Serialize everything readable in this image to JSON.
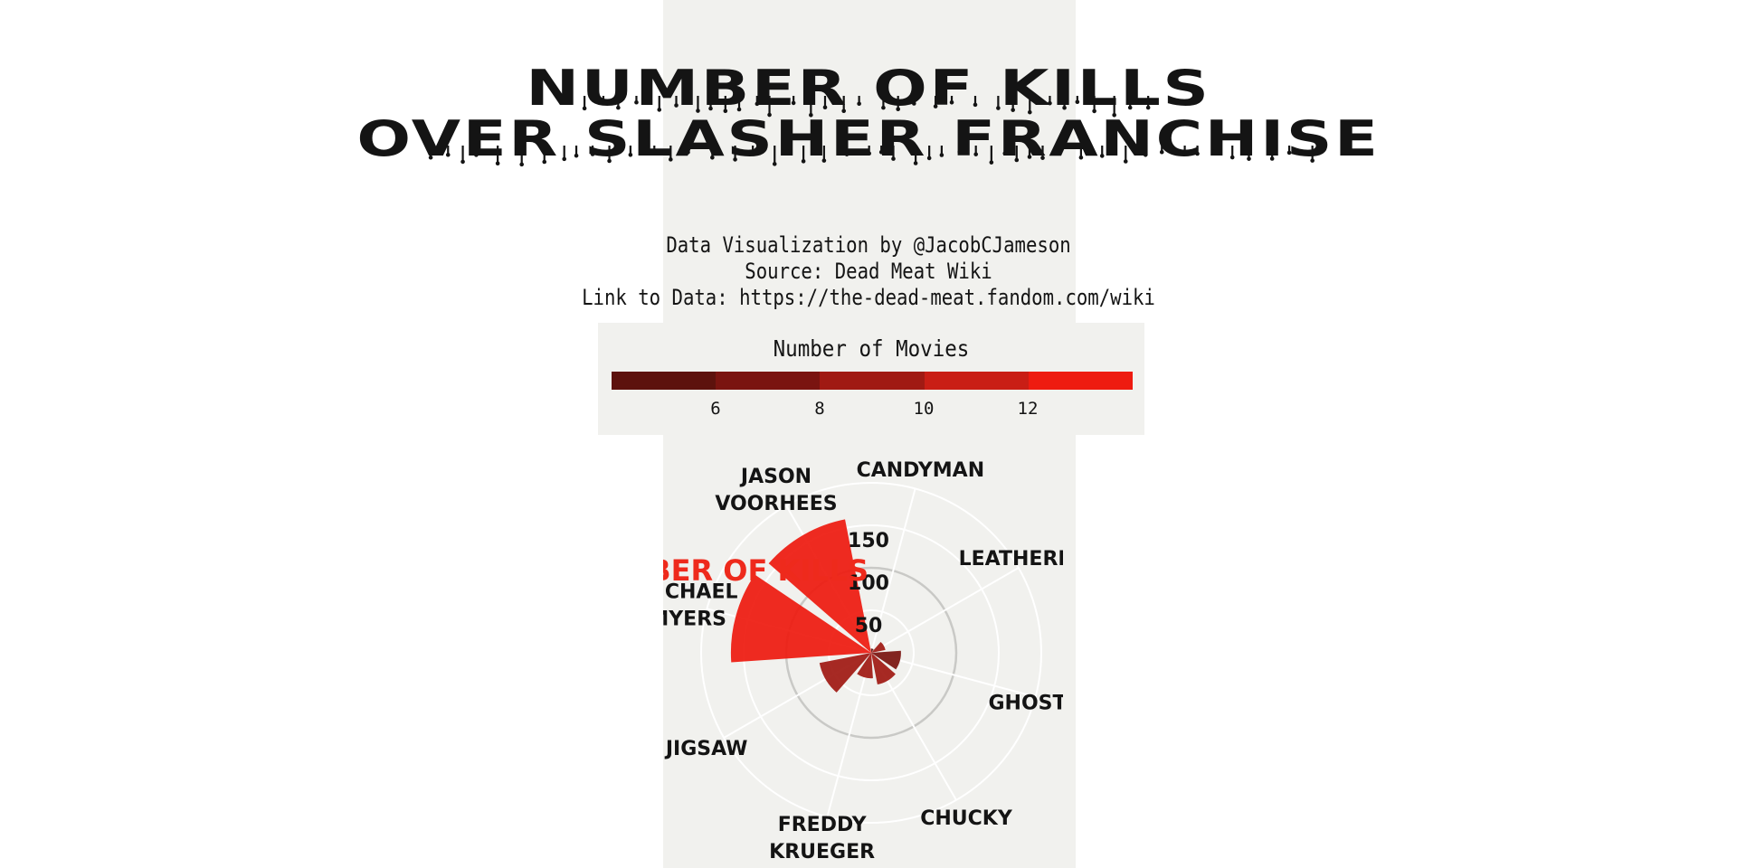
{
  "title": {
    "line1": "NUMBER OF KILLS",
    "line2": "OVER SLASHER FRANCHISE"
  },
  "credits": {
    "line1": "Data Visualization by @JacobCJameson",
    "line2": "Source: Dead Meat Wiki",
    "line3": "Link to Data: https://the-dead-meat.fandom.com/wiki"
  },
  "legend": {
    "title": "Number of Movies",
    "ticks": [
      "6",
      "8",
      "10",
      "12"
    ],
    "colors": [
      "#5d120d",
      "#7a1410",
      "#a01a13",
      "#c91e15",
      "#ee1b10"
    ]
  },
  "colors": {
    "background": "#ffffff",
    "panel": "#f1f1ee",
    "text": "#141414",
    "kills_label": "#ee2a1c"
  },
  "chart_data": {
    "type": "polar-bar",
    "radial_axis_title": "NUMBER OF KILLS",
    "radial_ticks": [
      "50",
      "100",
      "150"
    ],
    "radial_tick_values": [
      50,
      100,
      150
    ],
    "radial_max": 200,
    "start_angle_deg": 15,
    "direction": "clockwise",
    "legend_placement": "top",
    "categories": [
      {
        "name": "CANDYMAN",
        "label_lines": [
          "CANDYMAN"
        ],
        "kills": 5,
        "movies": 4
      },
      {
        "name": "LEATHERFACE",
        "label_lines": [
          "LEATHERFACE"
        ],
        "kills": 17,
        "movies": 9
      },
      {
        "name": "GHOSTFACE",
        "label_lines": [
          "GHOSTFACE"
        ],
        "kills": 35,
        "movies": 6
      },
      {
        "name": "CHUCKY",
        "label_lines": [
          "CHUCKY"
        ],
        "kills": 38,
        "movies": 8
      },
      {
        "name": "FREDDY KRUEGER",
        "label_lines": [
          "FREDDY",
          "KRUEGER"
        ],
        "kills": 30,
        "movies": 9
      },
      {
        "name": "JIGSAW",
        "label_lines": [
          "JIGSAW"
        ],
        "kills": 62,
        "movies": 9
      },
      {
        "name": "MICHAEL MYERS",
        "label_lines": [
          "MICHAEL",
          "MYERS"
        ],
        "kills": 165,
        "movies": 13
      },
      {
        "name": "JASON VOORHEES",
        "label_lines": [
          "JASON",
          "VOORHEES"
        ],
        "kills": 160,
        "movies": 12
      }
    ]
  }
}
